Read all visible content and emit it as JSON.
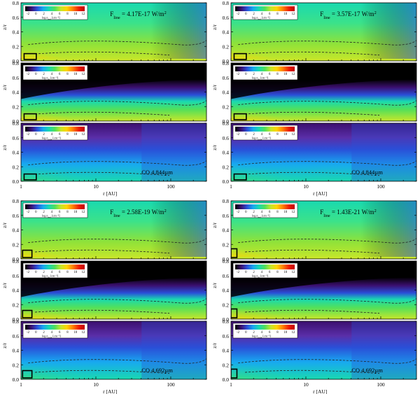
{
  "figure": {
    "panels": [
      {
        "flux_label": "F",
        "flux_sub": "line",
        "flux_value": " = 4.17E-17 W/m",
        "flux_sup": "2",
        "line_label": "CO 4.844µm",
        "x_axis_label": "r [AU]"
      },
      {
        "flux_label": "F",
        "flux_sub": "line",
        "flux_value": " = 3.57E-17 W/m",
        "flux_sup": "2",
        "line_label": "CO 4.844µm",
        "x_axis_label": "r [AU]"
      },
      {
        "flux_label": "F",
        "flux_sub": "line",
        "flux_value": " = 2.58E-19 W/m",
        "flux_sup": "2",
        "line_label": "CO 4.692µm",
        "x_axis_label": "r [AU]"
      },
      {
        "flux_label": "F",
        "flux_sub": "line",
        "flux_value": " = 1.43E-21 W/m",
        "flux_sup": "2",
        "line_label": "CO 4.692µm",
        "x_axis_label": "r [AU]"
      }
    ],
    "row_colorbars": [
      {
        "text": "log n",
        "sub": "mol",
        "unit": " [cm⁻³]"
      },
      {
        "text": "log n",
        "sub": "H",
        "unit": " [cm⁻³]"
      },
      {
        "text": "log n",
        "sub": "ph,H",
        "unit": " [cm⁻³]"
      }
    ],
    "y_axis_label": "z/r"
  },
  "chart_data": {
    "type": "heatmap",
    "description_units": "x is radius in AU (log axis), y is z/r",
    "x_scale": "log",
    "xlim": [
      1,
      300
    ],
    "x_ticks": [
      1,
      10,
      100
    ],
    "x_tick_labels": [
      "1",
      "10",
      "100"
    ],
    "ylim": [
      0,
      0.8
    ],
    "y_ticks": [
      0.0,
      0.2,
      0.4,
      0.6,
      0.8
    ],
    "y_tick_labels": [
      "0.0",
      "0.2",
      "0.4",
      "0.6",
      "0.8"
    ],
    "colorbar_ticks": [
      -2,
      0,
      2,
      4,
      6,
      8,
      10,
      12
    ],
    "colorbar_tick_labels": [
      "-2",
      "0",
      "2",
      "4",
      "6",
      "8",
      "10",
      "12"
    ],
    "colormap": [
      "#000000",
      "#3b0f6f",
      "#2a4fd8",
      "#18a8f0",
      "#19d9b0",
      "#52e05a",
      "#c8e62a",
      "#ffd400",
      "#ff8000",
      "#ee2000",
      "#c00000"
    ],
    "panels": [
      {
        "flux_W_m2": 4.17e-17,
        "line": "CO 4.844µm",
        "emitting_region": {
          "r": [
            1.1,
            1.6
          ],
          "z_r": [
            0.0,
            0.1
          ]
        }
      },
      {
        "flux_W_m2": 3.57e-17,
        "line": "CO 4.844µm",
        "emitting_region": {
          "r": [
            1.1,
            1.6
          ],
          "z_r": [
            0.0,
            0.1
          ]
        }
      },
      {
        "flux_W_m2": 2.58e-19,
        "line": "CO 4.692µm",
        "emitting_region": {
          "r": [
            1.05,
            1.4
          ],
          "z_r": [
            0.0,
            0.12
          ]
        }
      },
      {
        "flux_W_m2": 1.43e-21,
        "line": "CO 4.692µm",
        "emitting_region": {
          "r": [
            1.0,
            1.2
          ],
          "z_r": [
            0.0,
            0.14
          ]
        }
      }
    ]
  }
}
